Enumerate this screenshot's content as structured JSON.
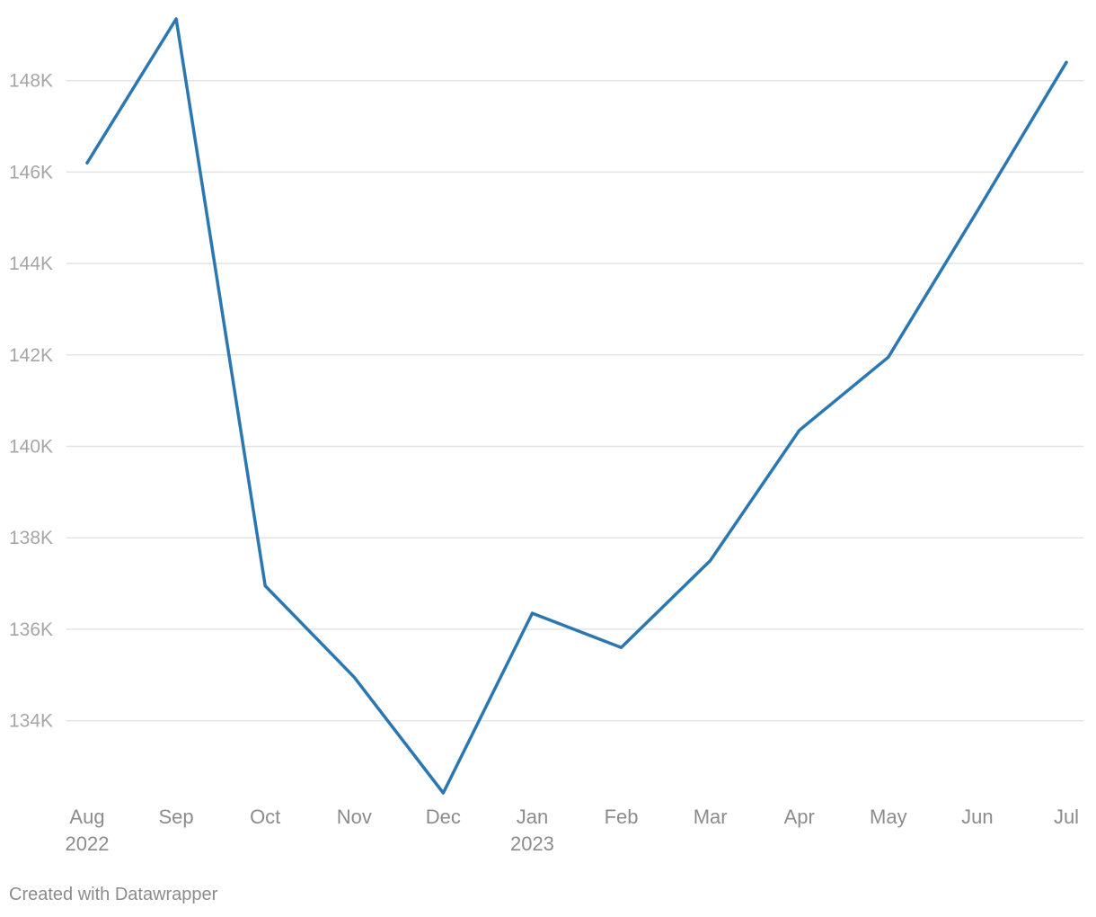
{
  "chart_data": {
    "type": "line",
    "title": "",
    "xlabel": "",
    "ylabel": "",
    "x": [
      "Aug",
      "Sep",
      "Oct",
      "Nov",
      "Dec",
      "Jan",
      "Feb",
      "Mar",
      "Apr",
      "May",
      "Jun",
      "Jul"
    ],
    "x_year_labels": {
      "Aug": "2022",
      "Jan": "2023"
    },
    "series": [
      {
        "values": [
          146200,
          149350,
          136950,
          134950,
          132420,
          136350,
          135600,
          137500,
          140350,
          141950,
          145150,
          148400
        ]
      }
    ],
    "yticks": [
      134000,
      136000,
      138000,
      140000,
      142000,
      144000,
      146000,
      148000
    ],
    "ytick_labels": [
      "134K",
      "136K",
      "138K",
      "140K",
      "142K",
      "144K",
      "146K",
      "148K"
    ],
    "ylim": [
      132420,
      149350
    ],
    "grid": true,
    "legend": "none",
    "colors": {
      "line": "#2b77b1",
      "grid": "#e3e3e3",
      "tick_text": "#a6a6a6",
      "axis_text": "#8c8c8c"
    }
  },
  "footer": {
    "credit": "Created with Datawrapper"
  }
}
